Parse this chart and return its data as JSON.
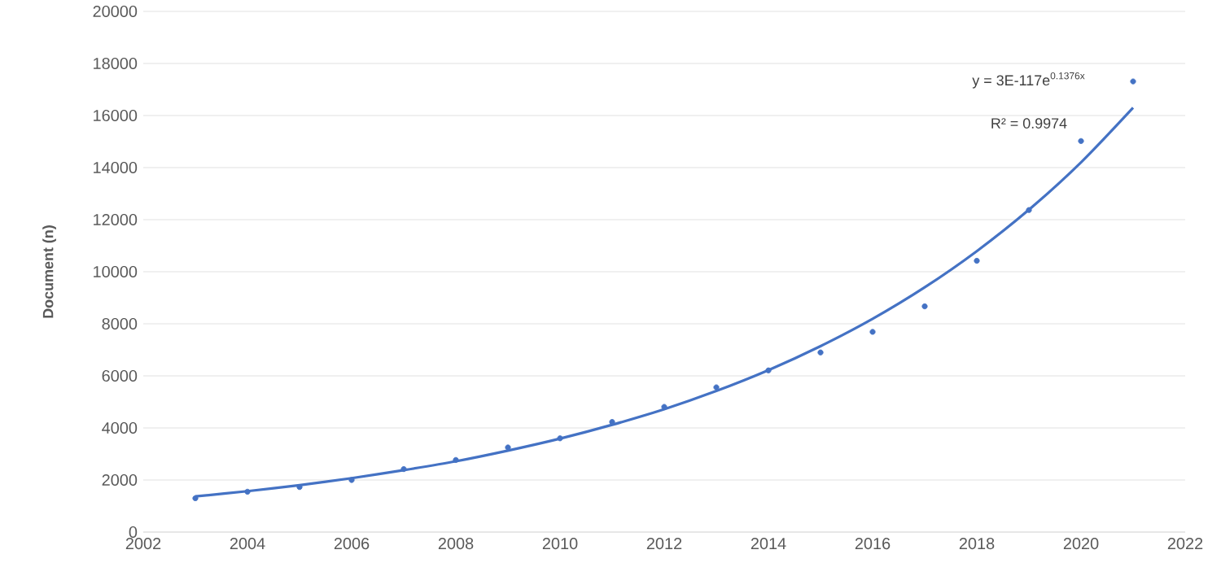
{
  "chart_data": {
    "type": "scatter",
    "ylabel": "Document  (n)",
    "xlim": [
      2002,
      2022
    ],
    "xticks": [
      2002,
      2004,
      2006,
      2008,
      2010,
      2012,
      2014,
      2016,
      2018,
      2020,
      2022
    ],
    "ylim": [
      0,
      20000
    ],
    "yticks": [
      0,
      2000,
      4000,
      6000,
      8000,
      10000,
      12000,
      14000,
      16000,
      18000,
      20000
    ],
    "grid": "y",
    "annotations": [
      "y = 3E-117e$^{0.1376x}$",
      "R² = 0.9974"
    ],
    "series": [
      {
        "marker": "circle",
        "color": "#4472c4",
        "x": [
          2003,
          2004,
          2005,
          2006,
          2007,
          2008,
          2009,
          2010,
          2011,
          2012,
          2013,
          2014,
          2015,
          2016,
          2017,
          2018,
          2019,
          2020,
          2021
        ],
        "values": [
          1300,
          1550,
          1730,
          2000,
          2420,
          2770,
          3250,
          3600,
          4230,
          4810,
          5560,
          6210,
          6900,
          7690,
          8670,
          10420,
          12370,
          15020,
          17310
        ]
      },
      {
        "type": "line",
        "color": "#4472c4",
        "marker": "none",
        "x": [
          2003,
          2004,
          2005,
          2006,
          2007,
          2008,
          2009,
          2010,
          2011,
          2012,
          2013,
          2014,
          2015,
          2016,
          2017,
          2018,
          2019,
          2020,
          2021
        ],
        "values": [
          1370,
          1570,
          1800,
          2070,
          2380,
          2720,
          3130,
          3590,
          4120,
          4720,
          5420,
          6220,
          7140,
          8190,
          9400,
          10790,
          12380,
          14200,
          16300
        ]
      }
    ]
  }
}
